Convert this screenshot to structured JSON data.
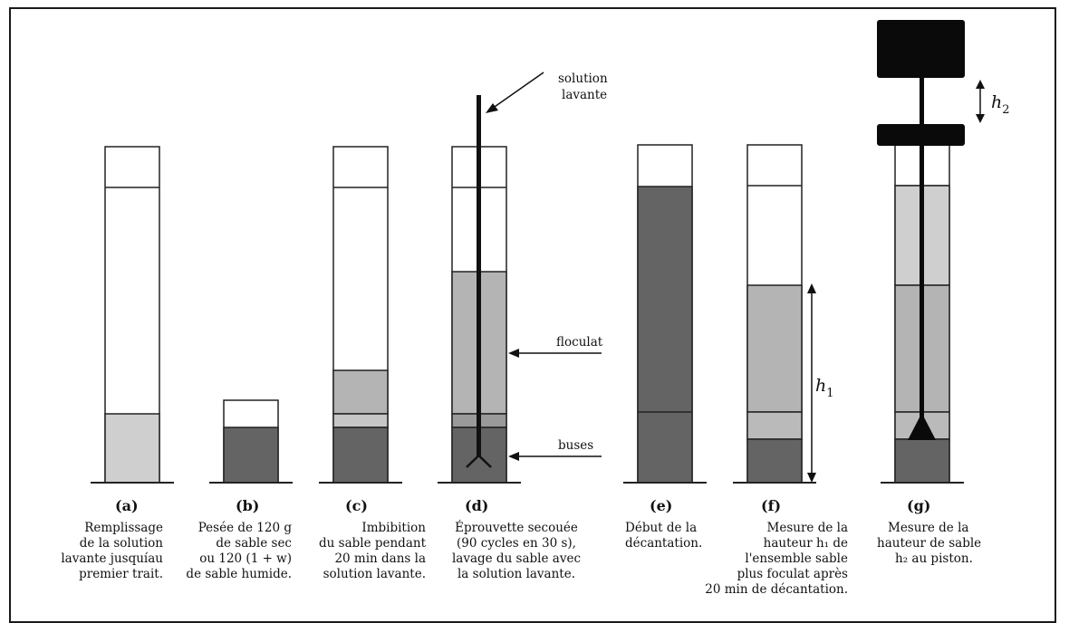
{
  "colors": {
    "frame": "#1a1a1a",
    "empty": "#ffffff",
    "light": "#cfcfcf",
    "mid": "#b4b4b4",
    "dark": "#646464",
    "black": "#0a0a0a"
  },
  "cylinders": [
    {
      "id": "a",
      "letter": "(a)",
      "caption": [
        "Remplissage",
        "de la solution",
        "lavante jusquíau",
        "premier trait."
      ]
    },
    {
      "id": "b",
      "letter": "(b)",
      "caption": [
        "Pesée de 120 g",
        "de sable sec",
        "ou 120 (1 + w)",
        "de sable humide."
      ]
    },
    {
      "id": "c",
      "letter": "(c)",
      "caption": [
        "Imbibition",
        "du sable pendant",
        "20 min dans la",
        "solution lavante."
      ]
    },
    {
      "id": "d",
      "letter": "(d)",
      "caption": [
        "Éprouvette secouée",
        "(90 cycles en 30 s),",
        "lavage du sable avec",
        "la solution lavante."
      ]
    },
    {
      "id": "e",
      "letter": "(e)",
      "caption": [
        "Début de la",
        "décantation."
      ]
    },
    {
      "id": "f",
      "letter": "(f)",
      "caption": [
        "Mesure de la",
        "hauteur h₁ de",
        "l'ensemble sable",
        "plus foculat après",
        "20 min de décantation."
      ]
    },
    {
      "id": "g",
      "letter": "(g)",
      "caption": [
        "Mesure de la",
        "hauteur de sable",
        "h₂ au piston."
      ]
    }
  ],
  "annotations": {
    "solution_lavante": [
      "solution",
      "lavante"
    ],
    "floculat": "floculat",
    "buses": "buses",
    "h1_symbol": "h",
    "h1_sub": "1",
    "h2_symbol": "h",
    "h2_sub": "2"
  }
}
